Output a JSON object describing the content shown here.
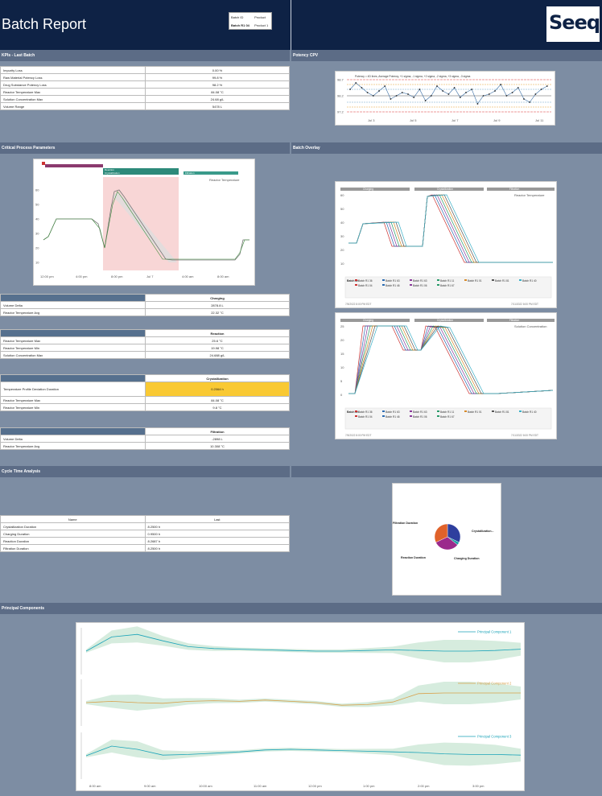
{
  "header": {
    "title": "Batch Report",
    "batch_id_label": "Batch ID",
    "batch_id_value": "Batch R1 04",
    "product_label": "Product",
    "product_value": "Product 1",
    "logo_text": "Seeq"
  },
  "sections": {
    "kpis": "KPIs - Last Batch",
    "potency": "Potency CPV",
    "cpp": "Critical Process Parameters",
    "overlay": "Batch Overlay",
    "cycle": "Cycle Time Analysis",
    "pca": "Principal Components"
  },
  "kpis": [
    {
      "name": "Impurity Loss",
      "value": "0.00 %"
    },
    {
      "name": "Raw Material Potency Loss",
      "value": "99.8 %"
    },
    {
      "name": "Drug Substance Potency Loss",
      "value": "98.2 %"
    },
    {
      "name": "Reactor Temperature Max",
      "value": "84.08 °C"
    },
    {
      "name": "Solution Concentration Max",
      "value": "24.68 g/L"
    },
    {
      "name": "Volume Range",
      "value": "5478 L"
    }
  ],
  "potency_chart": {
    "legend": "Potency = 4D lines, Average Potency, +1 sigma, -1 sigma, +2 sigma, -2 sigma, +3 sigma, -3 sigma",
    "y_ticks": [
      "98.7",
      "98.2",
      "97.2"
    ],
    "x_ticks": [
      "Jul 3",
      "Jul 5",
      "Jul 7",
      "Jul 9",
      "Jul 11"
    ]
  },
  "cpp_chart": {
    "legend": "Reactor Temperature",
    "phase_labels": [
      "Charging",
      "Reaction",
      "Crystallization",
      "Filtration"
    ],
    "y_ticks": [
      "60",
      "50",
      "40",
      "30",
      "20",
      "10"
    ],
    "x_ticks": [
      "12:00 pm",
      "4:00 pm",
      "8:00 pm",
      "Jul 7",
      "4:00 am",
      "8:00 am"
    ]
  },
  "phase_tables": [
    {
      "phase": "Charging",
      "rows": [
        {
          "name": "Volume Delta",
          "value": "2878.8 L"
        },
        {
          "name": "Reactor Temperature Avg",
          "value": "22.32 °C"
        }
      ]
    },
    {
      "phase": "Reaction",
      "rows": [
        {
          "name": "Reactor Temperature Max",
          "value": "25.6 °C"
        },
        {
          "name": "Reactor Temperature Min",
          "value": "19.98 °C"
        },
        {
          "name": "Solution Concentration Max",
          "value": "24.688 g/L"
        }
      ]
    },
    {
      "phase": "Crystallization",
      "rows": [
        {
          "name": "Temperature Profile Deviation Duration",
          "value": "0.2064 h",
          "highlight": true
        },
        {
          "name": "Reactor Temperature Max",
          "value": "84.08 °C"
        },
        {
          "name": "Reactor Temperature Min",
          "value": "9.8 °C"
        }
      ]
    },
    {
      "phase": "Filtration",
      "rows": [
        {
          "name": "Volume Delta",
          "value": "-2898 L"
        },
        {
          "name": "Reactor Temperature Avg",
          "value": "10.308 °C"
        }
      ]
    }
  ],
  "overlay_charts": [
    {
      "title": "Reactor Temperature",
      "phases": [
        "Charging",
        "Crystallization",
        "Filtration"
      ],
      "y_ticks": [
        "60",
        "50",
        "40",
        "30",
        "20",
        "10"
      ],
      "footer_left": "7/5/2022 8:00 PM EDT",
      "footer_right": "7/11/2022 8:00 PM EDT"
    },
    {
      "title": "Solution Concentration",
      "phases": [
        "Charging",
        "Crystallization",
        "Filtration"
      ],
      "y_ticks": [
        "25",
        "20",
        "15",
        "10",
        "5",
        "0"
      ],
      "footer_left": "7/5/2022 8:00 PM EDT",
      "footer_right": "7/11/2022 8:00 PM EDT"
    }
  ],
  "overlay_legend": {
    "label": "Batch ID:",
    "items": [
      "Batch R1 36",
      "Batch R1 63",
      "Batch R1 63",
      "Batch R1 11",
      "Batch R1 01",
      "Batch R1 81",
      "Batch R1 40",
      "Batch R1 04",
      "Batch R1 46",
      "Batch R1 06",
      "Batch R1 67"
    ]
  },
  "cycle_table": {
    "headers": [
      "Name",
      "Last"
    ],
    "rows": [
      {
        "name": "Crystallization Duration",
        "value": "8.2500 h"
      },
      {
        "name": "Charging Duration",
        "value": "0.9500 h"
      },
      {
        "name": "Reaction Duration",
        "value": "8.2687 h"
      },
      {
        "name": "Filtration Duration",
        "value": "8.2500 h"
      }
    ]
  },
  "chart_data": [
    {
      "type": "pie",
      "categories": [
        "Crystallization Duration",
        "Charging Duration",
        "Reaction Duration",
        "Filtration Duration"
      ],
      "labels_shown": [
        "Crystallization...",
        "Charging Duration",
        "Reaction Duration",
        "Filtration Duration"
      ],
      "values": [
        8.25,
        0.95,
        8.2687,
        8.25
      ],
      "colors": [
        "#2e3f9e",
        "#1aa3a3",
        "#9b2a8c",
        "#e0622a"
      ]
    },
    {
      "type": "line",
      "series": [
        {
          "name": "Principal Component 1",
          "color": "#1aa3b8",
          "values": [
            0,
            2.2,
            2.6,
            1.6,
            0.7,
            0.4,
            0.3,
            0.2,
            0.1,
            0,
            0,
            0.1,
            0.2,
            0.1,
            0,
            0,
            0.1,
            0.3
          ]
        },
        {
          "name": "Principal Component 2",
          "color": "#d8a04a",
          "values": [
            0,
            0.2,
            0,
            -0.1,
            0.2,
            0.3,
            0.2,
            0.4,
            0.2,
            0,
            -0.4,
            -0.3,
            0.1,
            1.4,
            1.5,
            1.5,
            1.5,
            1.5
          ]
        },
        {
          "name": "Principal Component 3",
          "color": "#1aa3b8",
          "values": [
            0,
            1.5,
            1.0,
            0.1,
            0.2,
            0.4,
            0.6,
            0.9,
            1.0,
            0.9,
            0.8,
            0.7,
            0.6,
            0.5,
            0.3,
            0.2,
            0.2,
            0.1
          ]
        }
      ],
      "x_ticks": [
        "8:00 am",
        "9:00 am",
        "10:00 am",
        "11:00 am",
        "12:00 pm",
        "1:00 pm",
        "2:00 pm",
        "3:00 pm"
      ]
    }
  ]
}
